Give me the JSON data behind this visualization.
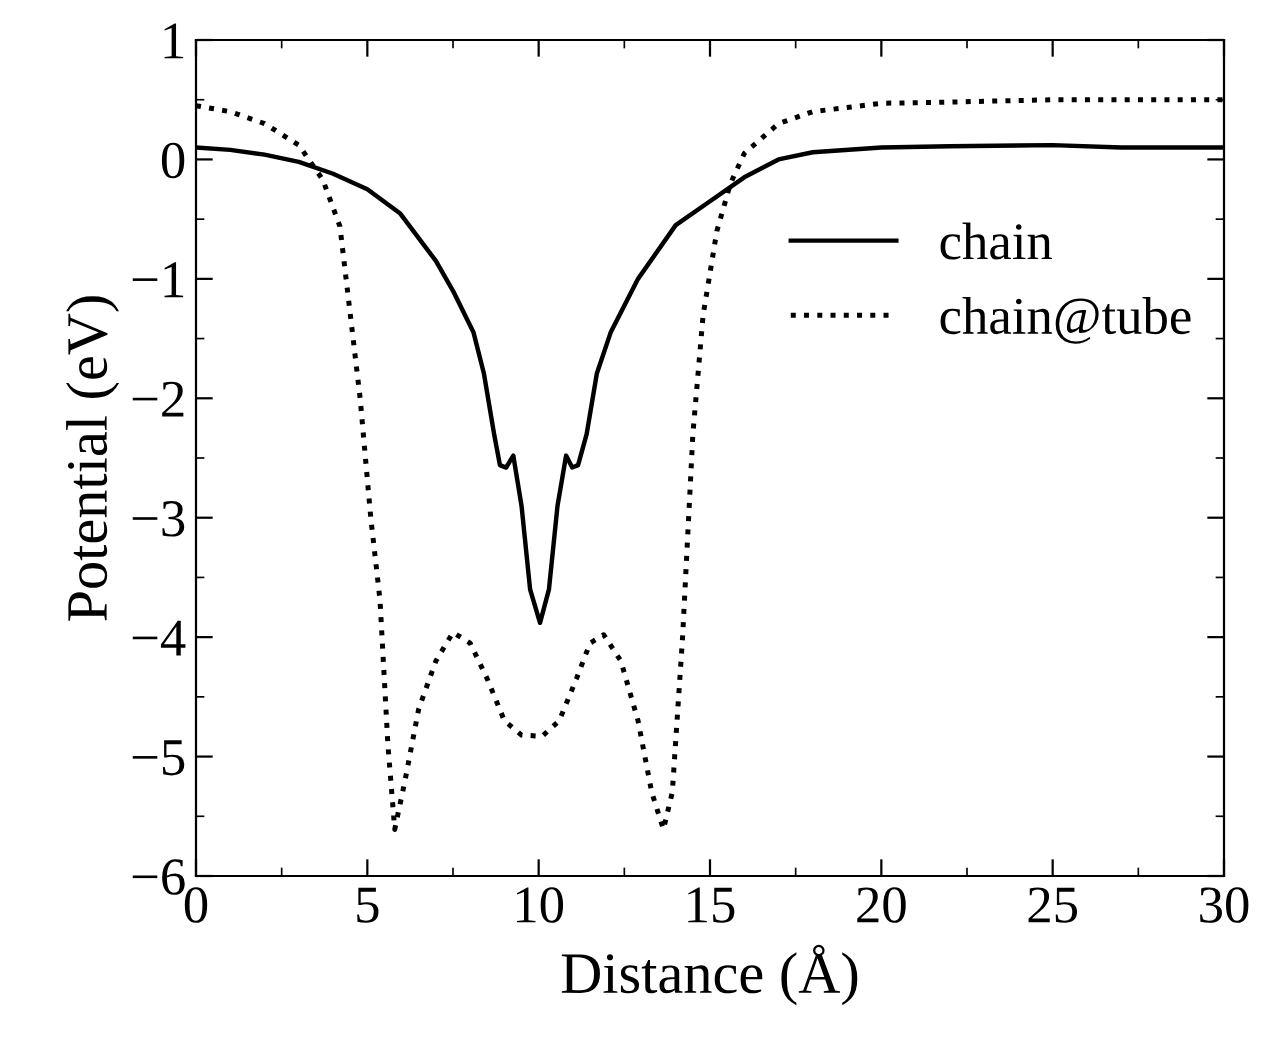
{
  "chart_data": {
    "type": "line",
    "xlabel": "Distance (Å)",
    "ylabel": "Potential (eV)",
    "xlim": [
      0,
      30
    ],
    "ylim": [
      -6,
      1
    ],
    "xticks": [
      0,
      5,
      10,
      15,
      20,
      25,
      30
    ],
    "yticks": [
      -6,
      -5,
      -4,
      -3,
      -2,
      -1,
      0,
      1
    ],
    "grid": false,
    "legend": "top right",
    "series": [
      {
        "name": "chain",
        "color": "#000000",
        "line_style": "solid",
        "x": [
          0,
          1,
          2,
          3,
          4,
          5,
          5.95,
          7,
          7.5,
          8.1,
          8.4,
          8.7,
          8.87,
          9.05,
          9.26,
          9.5,
          9.75,
          10.04,
          10.3,
          10.55,
          10.8,
          10.98,
          11.15,
          11.4,
          11.7,
          12.1,
          12.9,
          14,
          15,
          16,
          17,
          18,
          20,
          22,
          25,
          27,
          30
        ],
        "values": [
          0.1,
          0.08,
          0.04,
          -0.02,
          -0.12,
          -0.25,
          -0.45,
          -0.85,
          -1.1,
          -1.45,
          -1.79,
          -2.3,
          -2.56,
          -2.58,
          -2.48,
          -2.9,
          -3.6,
          -3.88,
          -3.6,
          -2.9,
          -2.48,
          -2.58,
          -2.56,
          -2.3,
          -1.79,
          -1.45,
          -1.0,
          -0.55,
          -0.35,
          -0.15,
          0.0,
          0.06,
          0.1,
          0.11,
          0.12,
          0.1,
          0.1
        ]
      },
      {
        "name": "chain@tube",
        "color": "#000000",
        "line_style": "dotted",
        "x": [
          0,
          1,
          2,
          3,
          3.7,
          4.2,
          4.79,
          5.1,
          5.37,
          5.6,
          5.8,
          6.1,
          6.5,
          7,
          7.5,
          8,
          8.5,
          9,
          9.5,
          10.1,
          10.6,
          11.1,
          11.5,
          11.9,
          12.4,
          12.9,
          13.3,
          13.64,
          13.9,
          14.2,
          14.5,
          14.8,
          15.2,
          15.6,
          16,
          17,
          18,
          20,
          22,
          25,
          30
        ],
        "values": [
          0.45,
          0.4,
          0.3,
          0.12,
          -0.17,
          -0.56,
          -2.0,
          -3.0,
          -3.69,
          -4.9,
          -5.61,
          -5.2,
          -4.6,
          -4.2,
          -3.96,
          -4.05,
          -4.35,
          -4.7,
          -4.82,
          -4.83,
          -4.7,
          -4.35,
          -4.05,
          -3.98,
          -4.2,
          -4.7,
          -5.3,
          -5.61,
          -5.3,
          -4.0,
          -2.3,
          -1.3,
          -0.6,
          -0.2,
          0.05,
          0.3,
          0.4,
          0.47,
          0.48,
          0.5,
          0.5
        ]
      }
    ]
  }
}
